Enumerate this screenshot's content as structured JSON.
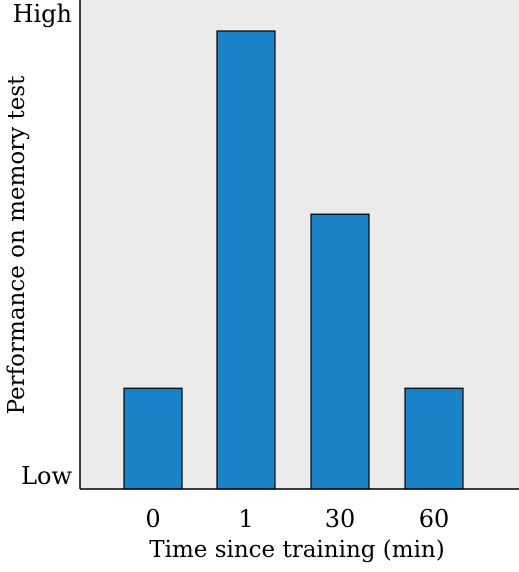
{
  "chart_data": {
    "type": "bar",
    "categories": [
      "0",
      "1",
      "30",
      "60"
    ],
    "values": [
      22,
      100,
      60,
      22
    ],
    "ylim": [
      0,
      100
    ],
    "xlabel": "Time since training (min)",
    "ylabel": "Performance on memory test",
    "y_tick_labels": {
      "top": "High",
      "bottom": "Low"
    },
    "grid": false,
    "legend": "none",
    "colors": {
      "bar": "#1a82c6",
      "plot_background": "#ebebeb",
      "axis": "#000000"
    }
  }
}
